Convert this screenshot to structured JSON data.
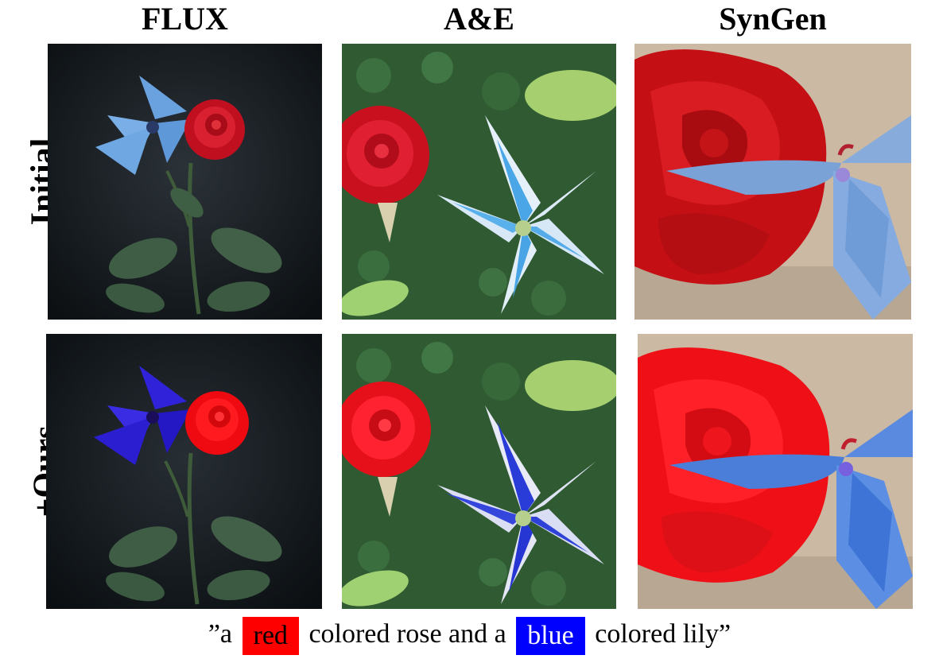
{
  "columns": [
    {
      "title": "FLUX"
    },
    {
      "title": "A&E"
    },
    {
      "title": "SynGen"
    }
  ],
  "rows": [
    {
      "label": "Initial"
    },
    {
      "label": "+Ours"
    }
  ],
  "caption": {
    "open": "”a",
    "word1": "red",
    "mid": "colored rose and a",
    "word2": "blue",
    "close": "colored lily”"
  },
  "colors": {
    "red_chip": "#ff0000",
    "blue_chip": "#0000ff"
  }
}
